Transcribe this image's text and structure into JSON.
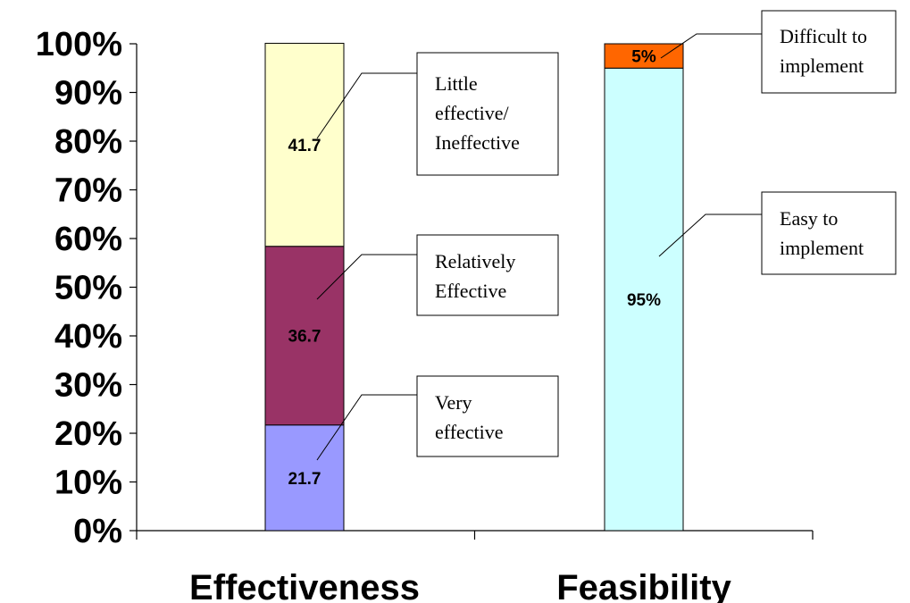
{
  "chart_data": {
    "type": "bar",
    "stacked": true,
    "categories": [
      "Effectiveness",
      "Feasibility"
    ],
    "ylim": [
      0,
      100
    ],
    "yticks": [
      "0%",
      "10%",
      "20%",
      "30%",
      "40%",
      "50%",
      "60%",
      "70%",
      "80%",
      "90%",
      "100%"
    ],
    "bars": [
      {
        "category": "Effectiveness",
        "segments": [
          {
            "name": "Very effective",
            "value": 21.7,
            "label": "21.7",
            "color": "#9999ff"
          },
          {
            "name": "Relatively Effective",
            "value": 36.7,
            "label": "36.7",
            "color": "#993366"
          },
          {
            "name": "Little effective/ Ineffective",
            "value": 41.7,
            "label": "41.7",
            "color": "#ffffcc"
          }
        ]
      },
      {
        "category": "Feasibility",
        "segments": [
          {
            "name": "Easy to implement",
            "value": 95,
            "label": "95%",
            "color": "#ccffff"
          },
          {
            "name": "Difficult to implement",
            "value": 5,
            "label": "5%",
            "color": "#ff6600"
          }
        ]
      }
    ],
    "callouts": [
      {
        "lines": [
          "Little",
          "effective/",
          "Ineffective"
        ]
      },
      {
        "lines": [
          "Relatively",
          "Effective"
        ]
      },
      {
        "lines": [
          "Very",
          "effective"
        ]
      },
      {
        "lines": [
          "Difficult to",
          "implement"
        ]
      },
      {
        "lines": [
          "Easy to",
          "implement"
        ]
      }
    ]
  }
}
